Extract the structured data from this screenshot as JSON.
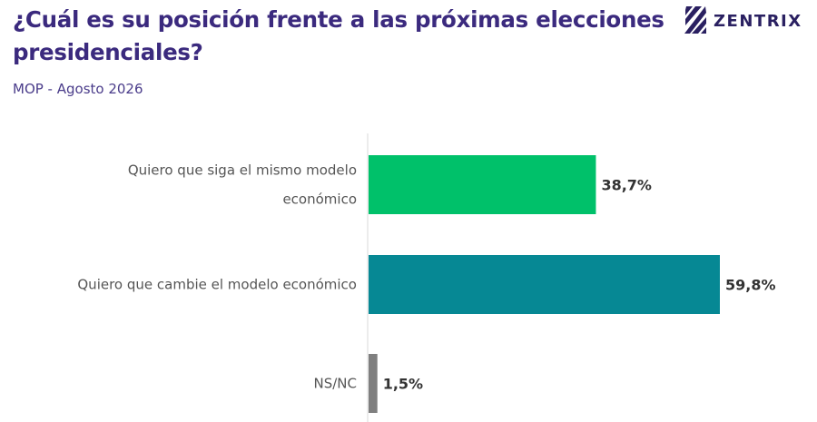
{
  "header": {
    "title": "¿Cuál es su posición frente a las próximas elecciones presidenciales?",
    "subtitle": "MOP - Agosto 2026"
  },
  "brand": {
    "name": "ZENTRIX",
    "icon": "zentrix-logo-icon"
  },
  "chart_data": {
    "type": "bar",
    "orientation": "horizontal",
    "title": "¿Cuál es su posición frente a las próximas elecciones presidenciales?",
    "subtitle": "MOP - Agosto 2026",
    "xlabel": "",
    "ylabel": "",
    "xlim": [
      0,
      70
    ],
    "grid": false,
    "legend": "none",
    "categories": [
      [
        "Quiero que siga el mismo modelo",
        "económico"
      ],
      [
        "Quiero que cambie el modelo económico"
      ],
      [
        "NS/NC"
      ]
    ],
    "values": [
      38.7,
      59.8,
      1.5
    ],
    "value_labels": [
      "38,7%",
      "59,8%",
      "1,5%"
    ],
    "colors": [
      "#00c16a",
      "#068894",
      "#7f7f7f"
    ]
  }
}
